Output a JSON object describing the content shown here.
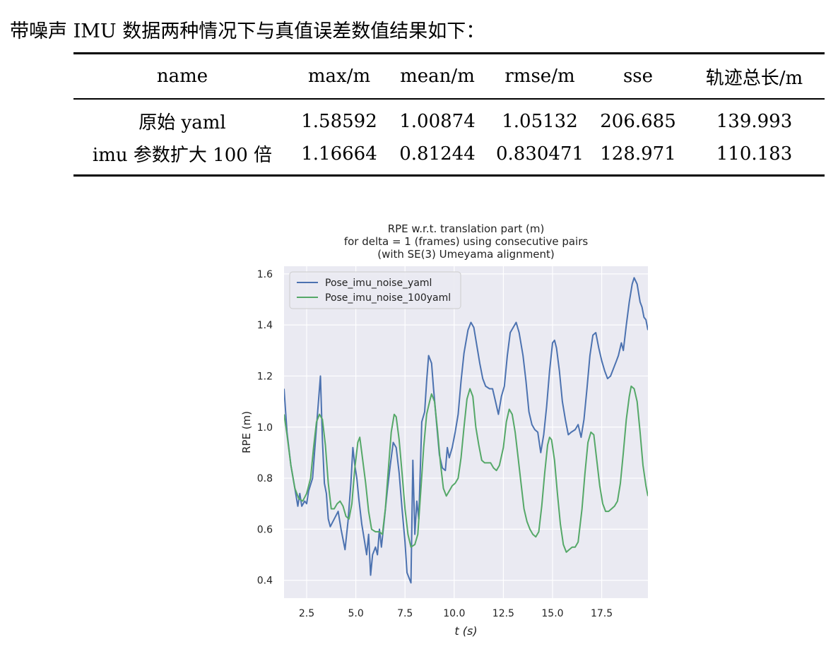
{
  "intro": "带噪声 IMU 数据两种情况下与真值误差数值结果如下：",
  "table": {
    "headers": [
      "name",
      "max/m",
      "mean/m",
      "rmse/m",
      "sse",
      "轨迹总长/m"
    ],
    "rows": [
      [
        "原始 yaml",
        "1.58592",
        "1.00874",
        "1.05132",
        "206.685",
        "139.993"
      ],
      [
        "imu 参数扩大 100 倍",
        "1.16664",
        "0.81244",
        "0.830471",
        "128.971",
        "110.183"
      ]
    ]
  },
  "chart_data": {
    "type": "line",
    "title_lines": [
      "RPE w.r.t. translation part (m)",
      "for delta = 1 (frames) using consecutive pairs",
      "(with SE(3) Umeyama alignment)"
    ],
    "xlabel": "t (s)",
    "ylabel": "RPE (m)",
    "xlim": [
      1.35,
      19.85
    ],
    "ylim": [
      0.33,
      1.63
    ],
    "xticks": [
      2.5,
      5.0,
      7.5,
      10.0,
      12.5,
      15.0,
      17.5
    ],
    "xtick_labels": [
      "2.5",
      "5.0",
      "7.5",
      "10.0",
      "12.5",
      "15.0",
      "17.5"
    ],
    "yticks": [
      0.4,
      0.6,
      0.8,
      1.0,
      1.2,
      1.4,
      1.6
    ],
    "ytick_labels": [
      "0.4",
      "0.6",
      "0.8",
      "1.0",
      "1.2",
      "1.4",
      "1.6"
    ],
    "grid": true,
    "legend_position": "top-left",
    "background_color": "#eaeaf2",
    "series": [
      {
        "name": "Pose_imu_noise_yaml",
        "color": "#4c72b0",
        "points": [
          [
            1.35,
            1.15
          ],
          [
            1.5,
            0.98
          ],
          [
            1.7,
            0.85
          ],
          [
            1.9,
            0.76
          ],
          [
            2.05,
            0.69
          ],
          [
            2.15,
            0.74
          ],
          [
            2.25,
            0.69
          ],
          [
            2.4,
            0.71
          ],
          [
            2.5,
            0.7
          ],
          [
            2.6,
            0.75
          ],
          [
            2.8,
            0.8
          ],
          [
            2.95,
            0.95
          ],
          [
            3.1,
            1.1
          ],
          [
            3.2,
            1.2
          ],
          [
            3.3,
            0.95
          ],
          [
            3.4,
            0.78
          ],
          [
            3.5,
            0.74
          ],
          [
            3.6,
            0.64
          ],
          [
            3.7,
            0.61
          ],
          [
            3.9,
            0.64
          ],
          [
            4.1,
            0.67
          ],
          [
            4.25,
            0.6
          ],
          [
            4.45,
            0.52
          ],
          [
            4.6,
            0.63
          ],
          [
            4.75,
            0.78
          ],
          [
            4.85,
            0.92
          ],
          [
            4.95,
            0.85
          ],
          [
            5.05,
            0.8
          ],
          [
            5.15,
            0.72
          ],
          [
            5.3,
            0.62
          ],
          [
            5.45,
            0.55
          ],
          [
            5.55,
            0.5
          ],
          [
            5.65,
            0.58
          ],
          [
            5.75,
            0.42
          ],
          [
            5.85,
            0.5
          ],
          [
            6.0,
            0.53
          ],
          [
            6.1,
            0.5
          ],
          [
            6.2,
            0.6
          ],
          [
            6.3,
            0.53
          ],
          [
            6.45,
            0.64
          ],
          [
            6.6,
            0.75
          ],
          [
            6.75,
            0.85
          ],
          [
            6.9,
            0.94
          ],
          [
            7.05,
            0.92
          ],
          [
            7.2,
            0.82
          ],
          [
            7.35,
            0.68
          ],
          [
            7.5,
            0.55
          ],
          [
            7.6,
            0.43
          ],
          [
            7.7,
            0.41
          ],
          [
            7.8,
            0.39
          ],
          [
            7.9,
            0.87
          ],
          [
            8.0,
            0.58
          ],
          [
            8.1,
            0.71
          ],
          [
            8.2,
            0.64
          ],
          [
            8.35,
            1.02
          ],
          [
            8.5,
            1.06
          ],
          [
            8.6,
            1.18
          ],
          [
            8.7,
            1.28
          ],
          [
            8.85,
            1.25
          ],
          [
            8.95,
            1.15
          ],
          [
            9.1,
            1.02
          ],
          [
            9.25,
            0.89
          ],
          [
            9.4,
            0.84
          ],
          [
            9.55,
            0.83
          ],
          [
            9.65,
            0.92
          ],
          [
            9.75,
            0.88
          ],
          [
            9.9,
            0.92
          ],
          [
            10.05,
            0.98
          ],
          [
            10.2,
            1.05
          ],
          [
            10.35,
            1.18
          ],
          [
            10.5,
            1.29
          ],
          [
            10.7,
            1.38
          ],
          [
            10.85,
            1.41
          ],
          [
            11.0,
            1.39
          ],
          [
            11.15,
            1.32
          ],
          [
            11.3,
            1.25
          ],
          [
            11.45,
            1.19
          ],
          [
            11.6,
            1.16
          ],
          [
            11.8,
            1.15
          ],
          [
            11.95,
            1.15
          ],
          [
            12.1,
            1.1
          ],
          [
            12.25,
            1.05
          ],
          [
            12.4,
            1.12
          ],
          [
            12.55,
            1.16
          ],
          [
            12.7,
            1.28
          ],
          [
            12.85,
            1.37
          ],
          [
            13.0,
            1.39
          ],
          [
            13.15,
            1.41
          ],
          [
            13.3,
            1.37
          ],
          [
            13.5,
            1.28
          ],
          [
            13.65,
            1.18
          ],
          [
            13.8,
            1.06
          ],
          [
            13.95,
            1.01
          ],
          [
            14.1,
            0.99
          ],
          [
            14.25,
            0.98
          ],
          [
            14.4,
            0.9
          ],
          [
            14.55,
            0.97
          ],
          [
            14.7,
            1.08
          ],
          [
            14.85,
            1.22
          ],
          [
            15.0,
            1.33
          ],
          [
            15.1,
            1.34
          ],
          [
            15.2,
            1.31
          ],
          [
            15.35,
            1.22
          ],
          [
            15.5,
            1.1
          ],
          [
            15.65,
            1.03
          ],
          [
            15.8,
            0.97
          ],
          [
            15.95,
            0.98
          ],
          [
            16.15,
            0.99
          ],
          [
            16.3,
            1.01
          ],
          [
            16.45,
            0.96
          ],
          [
            16.6,
            1.03
          ],
          [
            16.75,
            1.15
          ],
          [
            16.9,
            1.28
          ],
          [
            17.05,
            1.36
          ],
          [
            17.2,
            1.37
          ],
          [
            17.35,
            1.31
          ],
          [
            17.5,
            1.26
          ],
          [
            17.65,
            1.22
          ],
          [
            17.8,
            1.19
          ],
          [
            17.95,
            1.2
          ],
          [
            18.1,
            1.23
          ],
          [
            18.25,
            1.26
          ],
          [
            18.35,
            1.28
          ],
          [
            18.5,
            1.33
          ],
          [
            18.6,
            1.3
          ],
          [
            18.75,
            1.4
          ],
          [
            18.9,
            1.49
          ],
          [
            19.05,
            1.56
          ],
          [
            19.15,
            1.585
          ],
          [
            19.3,
            1.56
          ],
          [
            19.45,
            1.49
          ],
          [
            19.55,
            1.47
          ],
          [
            19.65,
            1.43
          ],
          [
            19.75,
            1.42
          ],
          [
            19.85,
            1.38
          ]
        ]
      },
      {
        "name": "Pose_imu_noise_100yaml",
        "color": "#55a868",
        "points": [
          [
            1.35,
            1.05
          ],
          [
            1.5,
            0.97
          ],
          [
            1.7,
            0.85
          ],
          [
            1.9,
            0.76
          ],
          [
            2.1,
            0.72
          ],
          [
            2.3,
            0.71
          ],
          [
            2.5,
            0.74
          ],
          [
            2.7,
            0.8
          ],
          [
            2.85,
            0.92
          ],
          [
            3.0,
            1.02
          ],
          [
            3.15,
            1.05
          ],
          [
            3.3,
            1.03
          ],
          [
            3.45,
            0.93
          ],
          [
            3.6,
            0.78
          ],
          [
            3.75,
            0.68
          ],
          [
            3.9,
            0.68
          ],
          [
            4.05,
            0.7
          ],
          [
            4.2,
            0.71
          ],
          [
            4.35,
            0.69
          ],
          [
            4.5,
            0.65
          ],
          [
            4.65,
            0.64
          ],
          [
            4.8,
            0.7
          ],
          [
            4.95,
            0.84
          ],
          [
            5.1,
            0.94
          ],
          [
            5.2,
            0.96
          ],
          [
            5.3,
            0.9
          ],
          [
            5.5,
            0.78
          ],
          [
            5.65,
            0.67
          ],
          [
            5.8,
            0.6
          ],
          [
            6.0,
            0.59
          ],
          [
            6.2,
            0.59
          ],
          [
            6.35,
            0.58
          ],
          [
            6.5,
            0.68
          ],
          [
            6.65,
            0.83
          ],
          [
            6.8,
            0.98
          ],
          [
            6.95,
            1.05
          ],
          [
            7.05,
            1.04
          ],
          [
            7.2,
            0.95
          ],
          [
            7.35,
            0.82
          ],
          [
            7.5,
            0.68
          ],
          [
            7.65,
            0.58
          ],
          [
            7.8,
            0.53
          ],
          [
            8.0,
            0.54
          ],
          [
            8.15,
            0.58
          ],
          [
            8.3,
            0.75
          ],
          [
            8.45,
            0.92
          ],
          [
            8.6,
            1.05
          ],
          [
            8.75,
            1.1
          ],
          [
            8.85,
            1.13
          ],
          [
            9.0,
            1.1
          ],
          [
            9.15,
            0.99
          ],
          [
            9.3,
            0.86
          ],
          [
            9.45,
            0.76
          ],
          [
            9.6,
            0.73
          ],
          [
            9.75,
            0.75
          ],
          [
            9.9,
            0.77
          ],
          [
            10.05,
            0.78
          ],
          [
            10.2,
            0.8
          ],
          [
            10.35,
            0.88
          ],
          [
            10.5,
            1.0
          ],
          [
            10.65,
            1.11
          ],
          [
            10.8,
            1.15
          ],
          [
            10.95,
            1.12
          ],
          [
            11.1,
            1.0
          ],
          [
            11.25,
            0.93
          ],
          [
            11.4,
            0.87
          ],
          [
            11.55,
            0.86
          ],
          [
            11.7,
            0.86
          ],
          [
            11.85,
            0.86
          ],
          [
            12.0,
            0.84
          ],
          [
            12.15,
            0.83
          ],
          [
            12.3,
            0.85
          ],
          [
            12.5,
            0.92
          ],
          [
            12.65,
            1.02
          ],
          [
            12.8,
            1.07
          ],
          [
            12.95,
            1.05
          ],
          [
            13.1,
            0.98
          ],
          [
            13.25,
            0.88
          ],
          [
            13.4,
            0.78
          ],
          [
            13.55,
            0.68
          ],
          [
            13.7,
            0.63
          ],
          [
            13.85,
            0.6
          ],
          [
            14.0,
            0.58
          ],
          [
            14.15,
            0.57
          ],
          [
            14.3,
            0.59
          ],
          [
            14.45,
            0.69
          ],
          [
            14.6,
            0.82
          ],
          [
            14.75,
            0.93
          ],
          [
            14.85,
            0.96
          ],
          [
            14.95,
            0.95
          ],
          [
            15.1,
            0.87
          ],
          [
            15.25,
            0.74
          ],
          [
            15.4,
            0.62
          ],
          [
            15.55,
            0.54
          ],
          [
            15.7,
            0.51
          ],
          [
            15.85,
            0.52
          ],
          [
            16.0,
            0.53
          ],
          [
            16.15,
            0.53
          ],
          [
            16.3,
            0.55
          ],
          [
            16.5,
            0.68
          ],
          [
            16.65,
            0.82
          ],
          [
            16.8,
            0.94
          ],
          [
            16.95,
            0.98
          ],
          [
            17.1,
            0.97
          ],
          [
            17.25,
            0.87
          ],
          [
            17.4,
            0.77
          ],
          [
            17.55,
            0.7
          ],
          [
            17.7,
            0.67
          ],
          [
            17.85,
            0.67
          ],
          [
            18.0,
            0.68
          ],
          [
            18.15,
            0.69
          ],
          [
            18.3,
            0.71
          ],
          [
            18.45,
            0.78
          ],
          [
            18.6,
            0.9
          ],
          [
            18.75,
            1.03
          ],
          [
            18.9,
            1.12
          ],
          [
            19.0,
            1.16
          ],
          [
            19.15,
            1.15
          ],
          [
            19.3,
            1.1
          ],
          [
            19.45,
            0.98
          ],
          [
            19.6,
            0.85
          ],
          [
            19.75,
            0.77
          ],
          [
            19.85,
            0.73
          ]
        ]
      }
    ]
  }
}
